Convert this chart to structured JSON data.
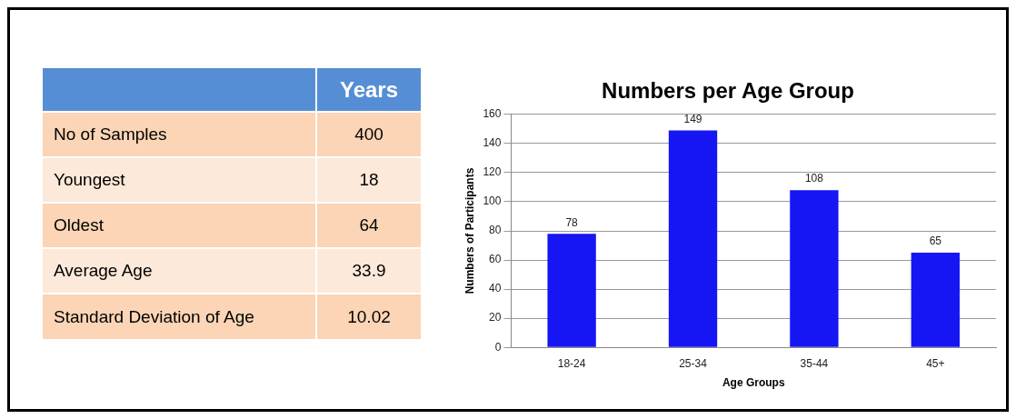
{
  "chart_data": [
    {
      "type": "other",
      "title": "Years",
      "categories": [
        "No of Samples",
        "Youngest",
        "Oldest",
        "Average Age",
        "Standard Deviation of Age"
      ],
      "values": [
        400,
        18,
        64,
        33.9,
        10.02
      ],
      "data_labels": true
    },
    {
      "type": "bar",
      "title": "Numbers per Age Group",
      "xlabel": "Age Groups",
      "ylabel": "Numbers of Participants",
      "categories": [
        "18-24",
        "25-34",
        "35-44",
        "45+"
      ],
      "values": [
        78,
        149,
        108,
        65
      ],
      "color": "#1616f5",
      "ylim": [
        0,
        160
      ],
      "yticks": [
        0,
        20,
        40,
        60,
        80,
        100,
        120,
        140,
        160
      ],
      "grid": "y",
      "data_labels": true
    }
  ]
}
